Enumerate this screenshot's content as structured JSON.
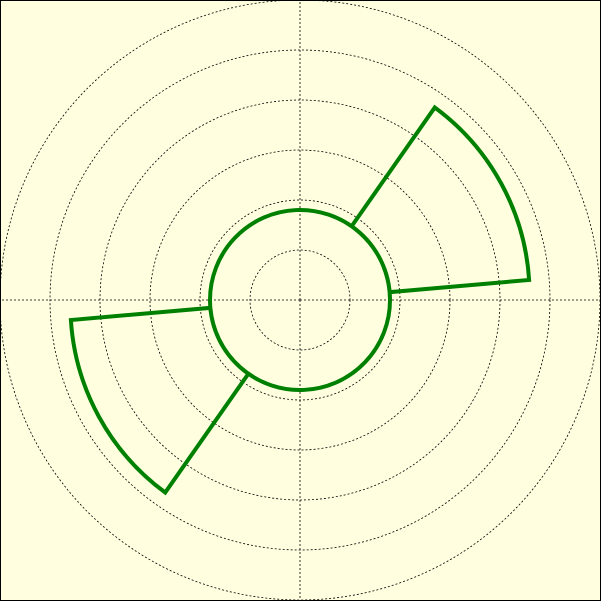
{
  "chart_data": {
    "type": "line",
    "projection": "polar",
    "title": "",
    "grid": true,
    "background_color": "#ffffe0",
    "line_color": "#008000",
    "grid_color": "#000000",
    "rlim": [
      0,
      300
    ],
    "r_gridlines": [
      50,
      100,
      150,
      200,
      250,
      300
    ],
    "theta_gridlines_deg": [
      0,
      90,
      180,
      270
    ],
    "series": [
      {
        "points": [
          {
            "theta_deg": 0,
            "r": 90
          },
          {
            "theta_deg": 55,
            "r": 90
          },
          {
            "theta_deg": 55,
            "r": 235
          },
          {
            "theta_deg": 5,
            "r": 230
          },
          {
            "theta_deg": 5,
            "r": 90
          },
          {
            "theta_deg": 180,
            "r": 90
          },
          {
            "theta_deg": 180,
            "r": 90
          },
          {
            "theta_deg": 235,
            "r": 90
          },
          {
            "theta_deg": 235,
            "r": 235
          },
          {
            "theta_deg": 185,
            "r": 230
          },
          {
            "theta_deg": 185,
            "r": 90
          },
          {
            "theta_deg": 360,
            "r": 90
          }
        ]
      }
    ]
  }
}
